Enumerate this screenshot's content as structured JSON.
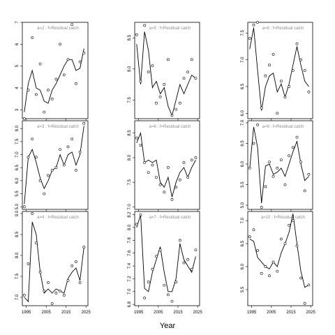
{
  "chart_data": {
    "type": "line",
    "xlabel": "Year",
    "x_ticks": [
      1995,
      2005,
      2015,
      2025
    ],
    "x_range": [
      1993,
      2026
    ],
    "x_axis_on_bottom_row_only": true,
    "style": {
      "line_color": "#000000",
      "point_marker": "open-circle",
      "title_color": "#8c8c8c"
    },
    "panels": [
      {
        "title": "a=2  :  f=Residual catch",
        "ylim": [
          2.6,
          7.0
        ],
        "yticks": [
          3,
          4,
          5,
          6,
          7
        ],
        "years": [
          1994,
          1996,
          1998,
          2000,
          2002,
          2004,
          2006,
          2008,
          2010,
          2012,
          2014,
          2016,
          2018,
          2020,
          2022,
          2024
        ],
        "points": [
          2.6,
          3.9,
          6.3,
          3.7,
          5.1,
          2.9,
          3.9,
          3.5,
          4.4,
          6.0,
          4.6,
          5.3,
          6.9,
          4.2,
          5.2,
          5.6
        ],
        "line": [
          2.9,
          4.2,
          4.8,
          4.0,
          3.9,
          3.4,
          3.3,
          3.9,
          4.2,
          4.6,
          5.0,
          5.3,
          5.3,
          4.8,
          4.9,
          5.8
        ]
      },
      {
        "title": "a=5  :  f=Residual catch",
        "ylim": [
          7.2,
          8.75
        ],
        "yticks": [
          7.5,
          8.0,
          8.5
        ],
        "years": [
          1994,
          1996,
          1998,
          2000,
          2002,
          2004,
          2006,
          2008,
          2010,
          2012,
          2014,
          2016,
          2018,
          2020,
          2022,
          2024
        ],
        "points": [
          8.55,
          7.8,
          8.7,
          7.95,
          8.05,
          7.45,
          7.55,
          7.75,
          8.15,
          7.25,
          7.35,
          7.45,
          7.85,
          7.95,
          8.15,
          7.85
        ],
        "line": [
          8.4,
          7.75,
          8.6,
          8.3,
          7.7,
          7.8,
          7.6,
          7.7,
          7.4,
          7.25,
          7.5,
          7.75,
          7.6,
          7.75,
          7.9,
          7.85
        ]
      },
      {
        "title": "a=8  :  f=Residual catch",
        "ylim": [
          5.9,
          7.7
        ],
        "yticks": [
          6.0,
          6.5,
          7.0,
          7.5
        ],
        "years": [
          1994,
          1996,
          1998,
          2000,
          2002,
          2004,
          2006,
          2008,
          2010,
          2012,
          2014,
          2016,
          2018,
          2020,
          2022,
          2024
        ],
        "points": [
          7.4,
          7.65,
          7.7,
          6.1,
          6.7,
          6.9,
          7.1,
          6.0,
          6.6,
          6.3,
          6.5,
          6.8,
          7.3,
          7.0,
          6.8,
          6.4
        ],
        "line": [
          7.2,
          7.6,
          6.8,
          6.05,
          6.5,
          6.7,
          6.75,
          6.4,
          6.55,
          6.3,
          6.55,
          6.9,
          7.25,
          6.9,
          6.6,
          6.5
        ]
      },
      {
        "title": "a=3  :  f=Residual catch",
        "ylim": [
          4.9,
          8.3
        ],
        "yticks": [
          5.0,
          5.5,
          6.0,
          6.5,
          7.0,
          7.5,
          8.0
        ],
        "years": [
          1994,
          1996,
          1998,
          2000,
          2002,
          2004,
          2006,
          2008,
          2010,
          2012,
          2014,
          2016,
          2018,
          2020,
          2022,
          2024
        ],
        "points": [
          5.0,
          6.9,
          7.6,
          6.9,
          6.0,
          5.5,
          6.2,
          6.4,
          6.5,
          7.2,
          6.6,
          7.3,
          7.6,
          6.4,
          7.1,
          8.2
        ],
        "line": [
          5.1,
          6.9,
          7.2,
          6.7,
          6.1,
          5.7,
          6.0,
          6.4,
          6.5,
          7.0,
          6.6,
          7.0,
          7.1,
          6.6,
          7.0,
          8.1
        ]
      },
      {
        "title": "a=6  :  f=Residual catch",
        "ylim": [
          6.95,
          8.75
        ],
        "yticks": [
          7.0,
          7.5,
          8.0,
          8.5
        ],
        "years": [
          1994,
          1996,
          1998,
          2000,
          2002,
          2004,
          2006,
          2008,
          2010,
          2012,
          2014,
          2016,
          2018,
          2020,
          2022,
          2024
        ],
        "points": [
          8.4,
          8.25,
          7.9,
          7.7,
          7.85,
          7.6,
          7.45,
          7.3,
          7.8,
          7.15,
          7.4,
          7.55,
          7.9,
          7.6,
          7.95,
          8.0
        ],
        "line": [
          8.3,
          8.5,
          7.9,
          7.95,
          7.9,
          7.95,
          7.5,
          7.4,
          7.6,
          7.2,
          7.5,
          7.7,
          7.8,
          7.6,
          7.8,
          7.95
        ]
      },
      {
        "title": "a=9  :  f=Residual catch",
        "ylim": [
          4.9,
          7.05
        ],
        "yticks": [
          5.0,
          5.5,
          6.0,
          6.5,
          7.0
        ],
        "years": [
          1994,
          1996,
          1998,
          2000,
          2002,
          2004,
          2006,
          2008,
          2010,
          2012,
          2014,
          2016,
          2018,
          2020,
          2022,
          2024
        ],
        "points": [
          5.9,
          6.5,
          6.95,
          4.95,
          5.45,
          6.05,
          5.7,
          5.9,
          6.1,
          5.5,
          6.2,
          6.4,
          6.65,
          6.05,
          5.35,
          5.75
        ],
        "line": [
          5.9,
          6.9,
          6.4,
          5.05,
          5.95,
          6.0,
          5.75,
          5.8,
          5.9,
          5.7,
          6.0,
          6.3,
          6.55,
          6.0,
          5.6,
          5.7
        ]
      },
      {
        "title": "a=4  :  f=Residual catch",
        "ylim": [
          6.8,
          9.05
        ],
        "yticks": [
          7.0,
          7.5,
          8.0,
          8.5,
          9.0
        ],
        "years": [
          1994,
          1996,
          1998,
          2000,
          2002,
          2004,
          2006,
          2008,
          2010,
          2012,
          2014,
          2016,
          2018,
          2020,
          2022,
          2024
        ],
        "points": [
          7.05,
          7.8,
          9.0,
          8.3,
          7.6,
          7.15,
          7.35,
          6.85,
          7.1,
          7.15,
          7.05,
          7.4,
          7.75,
          7.85,
          7.35,
          8.2
        ],
        "line": [
          7.0,
          6.9,
          8.8,
          8.5,
          7.6,
          7.1,
          7.2,
          7.1,
          7.2,
          7.15,
          7.1,
          7.45,
          7.6,
          7.7,
          7.4,
          8.2
        ]
      },
      {
        "title": "a=7  :  f=Residual catch",
        "ylim": [
          6.78,
          8.25
        ],
        "yticks": [
          6.8,
          7.0,
          7.2,
          7.4,
          7.6,
          7.8,
          8.0,
          8.2
        ],
        "years": [
          1994,
          1996,
          1998,
          2000,
          2002,
          2004,
          2006,
          2008,
          2010,
          2012,
          2014,
          2016,
          2018,
          2020,
          2022,
          2024
        ],
        "points": [
          8.05,
          8.2,
          6.9,
          7.15,
          7.35,
          7.55,
          7.65,
          7.1,
          6.95,
          6.85,
          7.15,
          7.8,
          7.45,
          7.5,
          7.35,
          7.65
        ],
        "line": [
          8.0,
          8.2,
          7.05,
          7.0,
          7.3,
          7.5,
          7.7,
          7.3,
          7.0,
          7.0,
          7.2,
          7.75,
          7.5,
          7.4,
          7.3,
          7.55
        ]
      },
      {
        "title": "a=10  :  f=Residual catch",
        "ylim": [
          5.15,
          7.2
        ],
        "yticks": [
          5.5,
          6.0,
          6.5,
          7.0
        ],
        "years": [
          1994,
          1996,
          1998,
          2000,
          2002,
          2004,
          2006,
          2008,
          2010,
          2012,
          2014,
          2016,
          2018,
          2020,
          2022,
          2024
        ],
        "points": [
          6.65,
          6.8,
          6.35,
          5.85,
          6.0,
          5.8,
          6.1,
          5.9,
          6.6,
          6.5,
          6.9,
          7.0,
          6.45,
          5.75,
          5.2,
          5.6
        ],
        "line": [
          6.6,
          6.55,
          6.2,
          6.1,
          6.0,
          5.95,
          6.1,
          6.0,
          6.3,
          6.5,
          6.75,
          7.15,
          6.5,
          5.9,
          5.55,
          5.6
        ]
      }
    ]
  }
}
